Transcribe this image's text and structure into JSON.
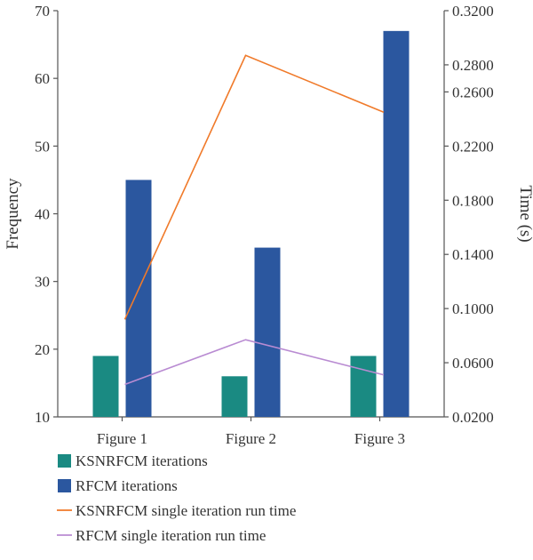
{
  "chart_data": {
    "type": "bar",
    "categories": [
      "Figure 1",
      "Figure 2",
      "Figure 3"
    ],
    "series": [
      {
        "name": "KSNRFCM iterations",
        "kind": "bar",
        "axis": "left",
        "color": "#1a8a82",
        "values": [
          19,
          16,
          19
        ]
      },
      {
        "name": "RFCM iterations",
        "kind": "bar",
        "axis": "left",
        "color": "#2b579f",
        "values": [
          45,
          35,
          67
        ]
      },
      {
        "name": "KSNRFCM single iteration run time",
        "kind": "line",
        "axis": "right",
        "color": "#f07a2a",
        "values": [
          0.092,
          0.287,
          0.245
        ]
      },
      {
        "name": "RFCM single iteration run time",
        "kind": "line",
        "axis": "right",
        "color": "#b98bd2",
        "values": [
          0.044,
          0.077,
          0.051
        ]
      }
    ],
    "left_axis": {
      "label": "Frequency",
      "range": [
        10,
        70
      ],
      "ticks": [
        10,
        20,
        30,
        40,
        50,
        60,
        70
      ],
      "tick_labels": [
        "10",
        "20",
        "30",
        "40",
        "50",
        "60",
        "70"
      ]
    },
    "right_axis": {
      "label": "Time (s)",
      "range": [
        0.02,
        0.32
      ],
      "ticks": [
        0.02,
        0.06,
        0.1,
        0.14,
        0.18,
        0.22,
        0.26,
        0.28,
        0.32
      ],
      "tick_labels": [
        "0.0200",
        "0.0600",
        "0.1000",
        "0.1400",
        "0.1800",
        "0.2200",
        "0.2600",
        "0.2800",
        "0.3200"
      ]
    },
    "grid": false,
    "legend_position": "bottom"
  }
}
